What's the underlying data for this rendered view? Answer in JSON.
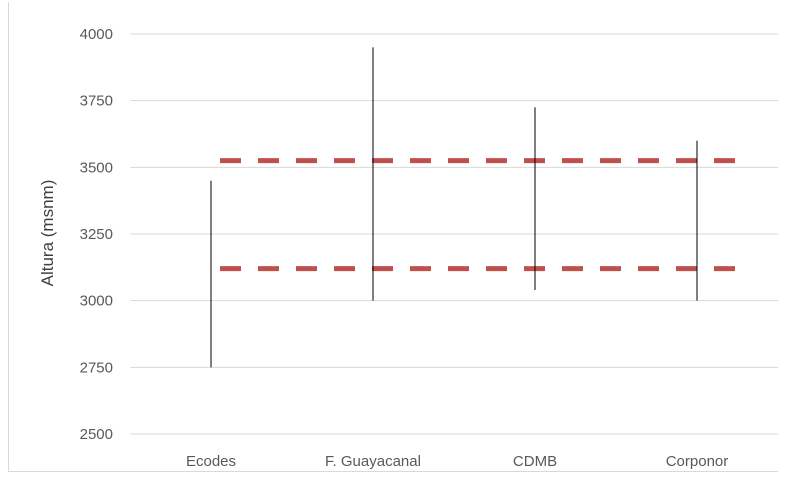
{
  "chart_data": {
    "type": "range",
    "title": "",
    "xlabel": "",
    "ylabel": "Altura (msnm)",
    "ylim": [
      2500,
      4000
    ],
    "yticks": [
      2500,
      2750,
      3000,
      3250,
      3500,
      3750,
      4000
    ],
    "grid": true,
    "categories": [
      "Ecodes",
      "F. Guayacanal",
      "CDMB",
      "Corponor"
    ],
    "ranges": [
      {
        "category": "Ecodes",
        "low": 2750,
        "high": 3450
      },
      {
        "category": "F. Guayacanal",
        "low": 3000,
        "high": 3950
      },
      {
        "category": "CDMB",
        "low": 3040,
        "high": 3725
      },
      {
        "category": "Corponor",
        "low": 3000,
        "high": 3600
      }
    ],
    "reference_lines": [
      {
        "y": 3525,
        "color": "#c0504d",
        "style": "dashed"
      },
      {
        "y": 3120,
        "color": "#c0504d",
        "style": "dashed"
      }
    ],
    "colors": {
      "range_line": "#000000",
      "grid": "#d9d9d9",
      "reference": "#c0504d"
    }
  }
}
